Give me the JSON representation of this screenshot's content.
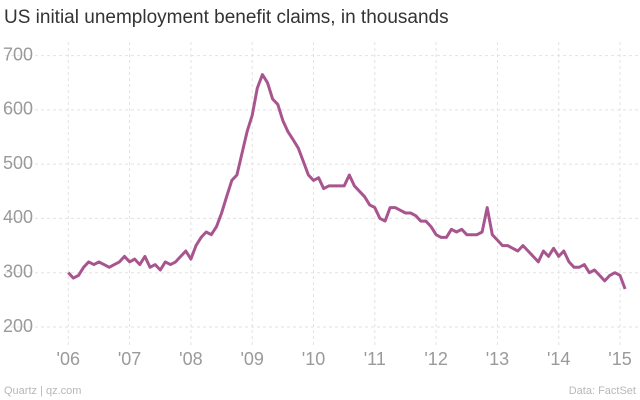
{
  "chart_data": {
    "type": "line",
    "title": "US initial unemployment benefit claims, in thousands",
    "credit": "Quartz | qz.com",
    "source": "Data: FactSet",
    "color": "#a8558f",
    "x": [
      2006.0,
      2006.083,
      2006.167,
      2006.25,
      2006.333,
      2006.417,
      2006.5,
      2006.583,
      2006.667,
      2006.75,
      2006.833,
      2006.917,
      2007.0,
      2007.083,
      2007.167,
      2007.25,
      2007.333,
      2007.417,
      2007.5,
      2007.583,
      2007.667,
      2007.75,
      2007.833,
      2007.917,
      2008.0,
      2008.083,
      2008.167,
      2008.25,
      2008.333,
      2008.417,
      2008.5,
      2008.583,
      2008.667,
      2008.75,
      2008.833,
      2008.917,
      2009.0,
      2009.083,
      2009.167,
      2009.25,
      2009.333,
      2009.417,
      2009.5,
      2009.583,
      2009.667,
      2009.75,
      2009.833,
      2009.917,
      2010.0,
      2010.083,
      2010.167,
      2010.25,
      2010.333,
      2010.417,
      2010.5,
      2010.583,
      2010.667,
      2010.75,
      2010.833,
      2010.917,
      2011.0,
      2011.083,
      2011.167,
      2011.25,
      2011.333,
      2011.417,
      2011.5,
      2011.583,
      2011.667,
      2011.75,
      2011.833,
      2011.917,
      2012.0,
      2012.083,
      2012.167,
      2012.25,
      2012.333,
      2012.417,
      2012.5,
      2012.583,
      2012.667,
      2012.75,
      2012.833,
      2012.917,
      2013.0,
      2013.083,
      2013.167,
      2013.25,
      2013.333,
      2013.417,
      2013.5,
      2013.583,
      2013.667,
      2013.75,
      2013.833,
      2013.917,
      2014.0,
      2014.083,
      2014.167,
      2014.25,
      2014.333,
      2014.417,
      2014.5,
      2014.583,
      2014.667,
      2014.75,
      2014.833,
      2014.917,
      2015.0,
      2015.083
    ],
    "values": [
      300,
      290,
      295,
      310,
      320,
      315,
      320,
      315,
      310,
      315,
      320,
      330,
      320,
      325,
      315,
      330,
      310,
      315,
      305,
      320,
      315,
      320,
      330,
      340,
      325,
      350,
      365,
      375,
      370,
      385,
      410,
      440,
      470,
      480,
      520,
      560,
      590,
      640,
      665,
      650,
      620,
      610,
      580,
      560,
      545,
      530,
      505,
      480,
      470,
      475,
      455,
      460,
      460,
      460,
      460,
      480,
      460,
      450,
      440,
      425,
      420,
      400,
      395,
      420,
      420,
      415,
      410,
      410,
      405,
      395,
      395,
      385,
      370,
      365,
      365,
      380,
      375,
      380,
      370,
      370,
      370,
      375,
      420,
      370,
      360,
      350,
      350,
      345,
      340,
      350,
      340,
      330,
      320,
      340,
      330,
      345,
      330,
      340,
      320,
      310,
      310,
      315,
      300,
      305,
      295,
      285,
      295,
      300,
      295,
      270
    ],
    "xlim": [
      2005.62,
      2015.13
    ],
    "ylim": [
      165,
      725
    ],
    "xticks": [
      {
        "value": 2006,
        "label": "'06"
      },
      {
        "value": 2007,
        "label": "'07"
      },
      {
        "value": 2008,
        "label": "'08"
      },
      {
        "value": 2009,
        "label": "'09"
      },
      {
        "value": 2010,
        "label": "'10"
      },
      {
        "value": 2011,
        "label": "'11"
      },
      {
        "value": 2012,
        "label": "'12"
      },
      {
        "value": 2013,
        "label": "'13"
      },
      {
        "value": 2014,
        "label": "'14"
      },
      {
        "value": 2015,
        "label": "'15"
      }
    ],
    "yticks": [
      200,
      300,
      400,
      500,
      600,
      700
    ],
    "grid": true
  }
}
